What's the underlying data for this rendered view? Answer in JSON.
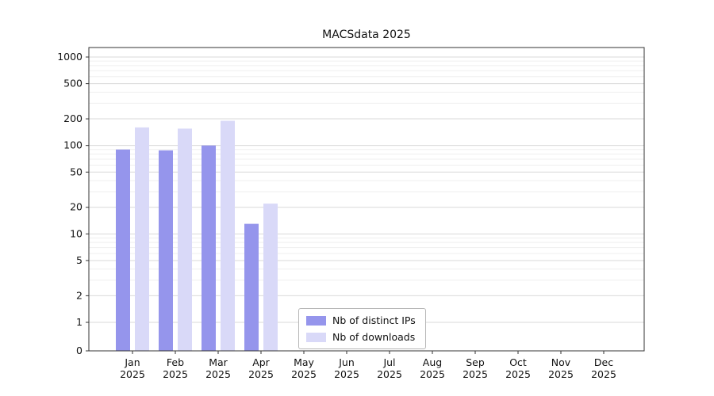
{
  "chart_data": {
    "type": "bar",
    "title": "MACSdata 2025",
    "categories": [
      "Jan",
      "Feb",
      "Mar",
      "Apr",
      "May",
      "Jun",
      "Jul",
      "Aug",
      "Sep",
      "Oct",
      "Nov",
      "Dec"
    ],
    "category_year": "2025",
    "series": [
      {
        "name": "Nb of distinct IPs",
        "color": "#9595ec",
        "values": [
          90,
          88,
          100,
          13,
          0,
          0,
          0,
          0,
          0,
          0,
          0,
          0
        ]
      },
      {
        "name": "Nb of downloads",
        "color": "#d9d9f8",
        "values": [
          160,
          155,
          190,
          22,
          0,
          0,
          0,
          0,
          0,
          0,
          0,
          0
        ]
      }
    ],
    "yscale": "log (with zero baseline)",
    "yticks": [
      0,
      1,
      2,
      5,
      10,
      20,
      50,
      100,
      200,
      500,
      1000
    ],
    "ylim": [
      0,
      1000
    ],
    "grid": "horizontal major + minor",
    "legend_position": "bottom-center"
  }
}
